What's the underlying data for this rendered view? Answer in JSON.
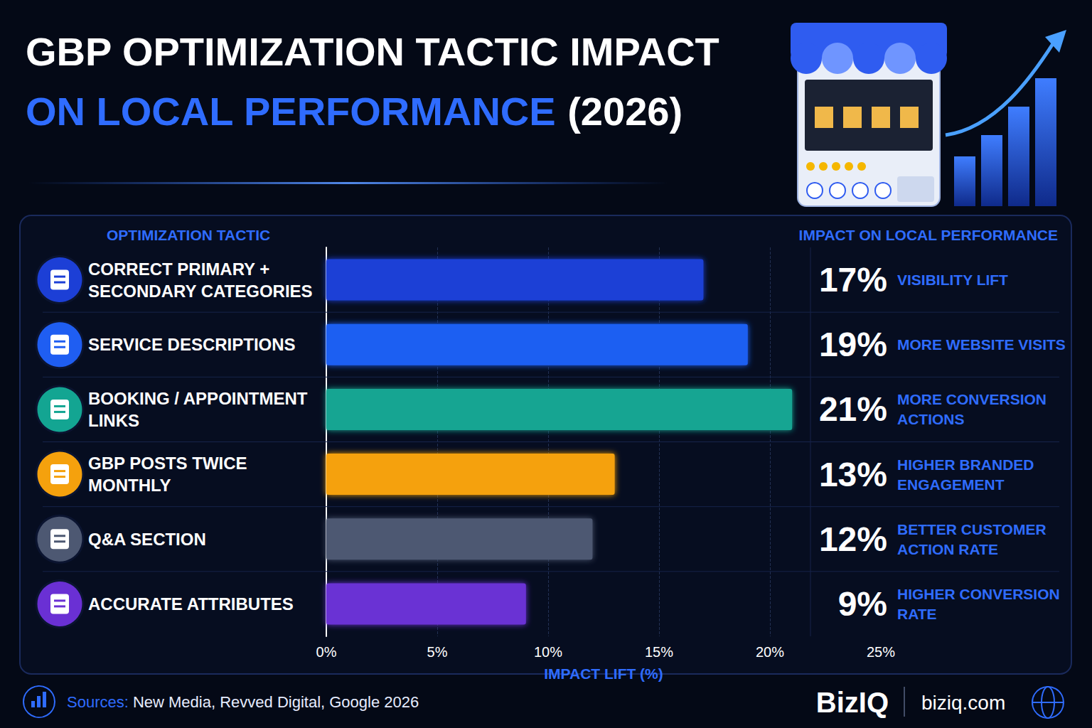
{
  "chart_data": {
    "type": "bar",
    "orientation": "horizontal",
    "title": "GBP OPTIMIZATION TACTIC IMPACT",
    "subtitle": "ON LOCAL PERFORMANCE (2026)",
    "category_header": "OPTIMIZATION TACTIC",
    "label_header": "IMPACT ON LOCAL PERFORMANCE",
    "categories": [
      "CORRECT PRIMARY + SECONDARY CATEGORIES",
      "SERVICE DESCRIPTIONS",
      "BOOKING / APPOINTMENT LINKS",
      "GBP POSTS TWICE MONTHLY",
      "Q&A SECTION",
      "ACCURATE ATTRIBUTES"
    ],
    "values": [
      17,
      19,
      21,
      13,
      12,
      9
    ],
    "value_labels": [
      "17%",
      "19%",
      "21%",
      "13%",
      "12%",
      "9%"
    ],
    "metrics": [
      "VISIBILITY LIFT",
      "MORE WEBSITE VISITS",
      "MORE CONVERSION ACTIONS",
      "HIGHER BRANDED ENGAGEMENT",
      "BETTER CUSTOMER ACTION RATE",
      "HIGHER CONVERSION RATE"
    ],
    "colors": [
      "#1c3fd6",
      "#1f5ef2",
      "#13a592",
      "#f5a10d",
      "#4d5872",
      "#6a30d4"
    ],
    "xlabel": "IMPACT LIFT (%)",
    "xlim": [
      0,
      25
    ],
    "xticks": [
      {
        "value": 0,
        "label": "0%"
      },
      {
        "value": 5,
        "label": "5%"
      },
      {
        "value": 10,
        "label": "10%"
      },
      {
        "value": 15,
        "label": "15%"
      },
      {
        "value": 20,
        "label": "20%"
      },
      {
        "value": 25,
        "label": "25%"
      }
    ],
    "grid": true,
    "data_labels": true,
    "source": "Sources: New Media, Revved Digital, Google 2026",
    "brand": "BizIQ",
    "website": "biziq.com"
  }
}
